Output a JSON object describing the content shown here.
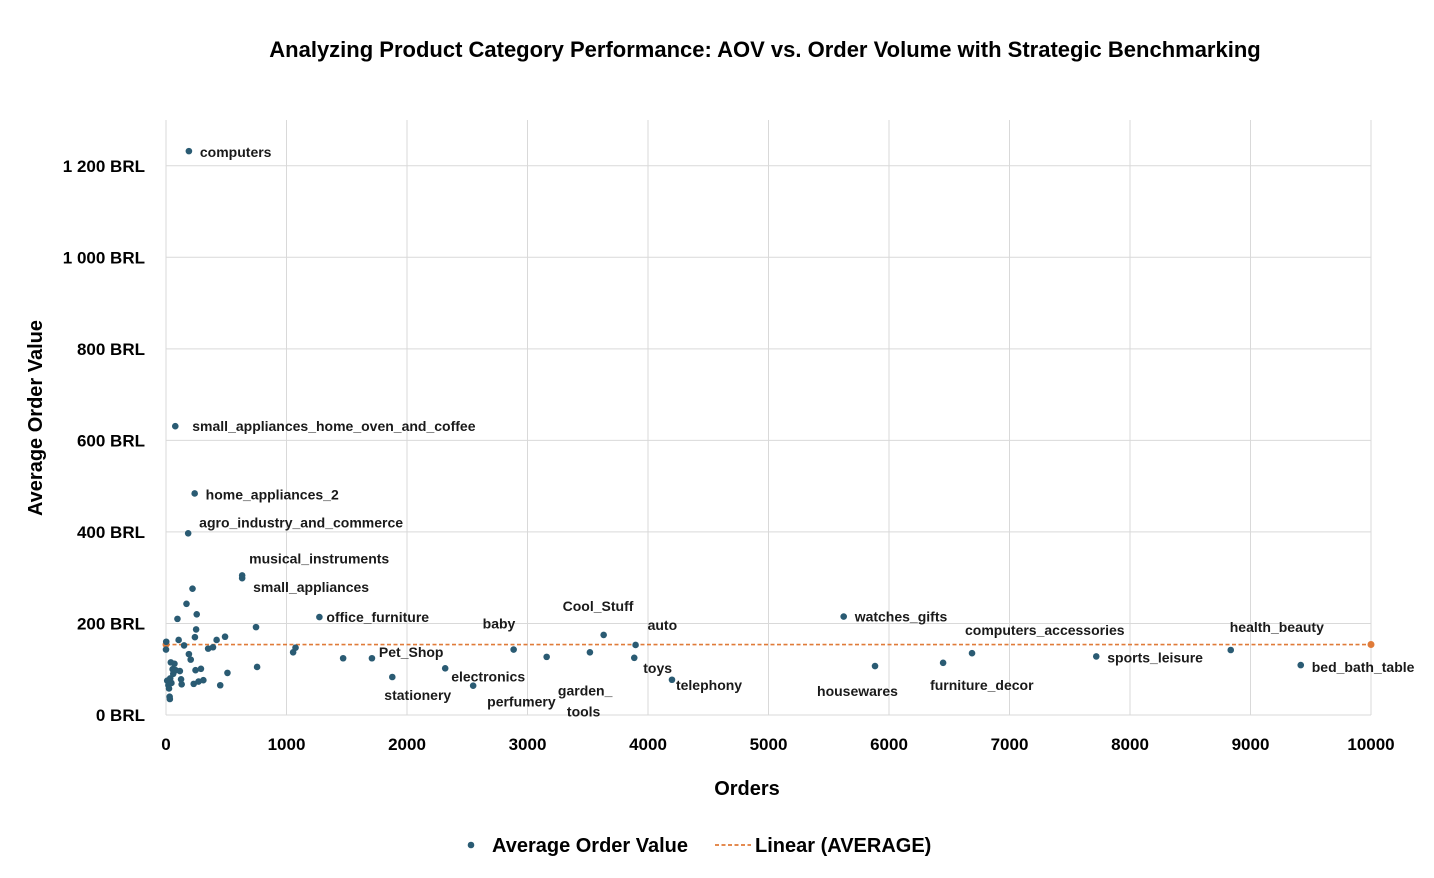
{
  "colors": {
    "point": "#2a5b73",
    "trend": "#e07b39",
    "grid": "#d9d9d9"
  },
  "chart_data": {
    "type": "scatter",
    "title": "Analyzing Product Category Performance: AOV vs. Order Volume with Strategic Benchmarking",
    "xlabel": "Orders",
    "ylabel": "Average Order Value",
    "xlim": [
      0,
      10000
    ],
    "ylim": [
      0,
      1300
    ],
    "x_ticks": [
      {
        "v": 0,
        "label": "0"
      },
      {
        "v": 1000,
        "label": "1000"
      },
      {
        "v": 2000,
        "label": "2000"
      },
      {
        "v": 3000,
        "label": "3000"
      },
      {
        "v": 4000,
        "label": "4000"
      },
      {
        "v": 5000,
        "label": "5000"
      },
      {
        "v": 6000,
        "label": "6000"
      },
      {
        "v": 7000,
        "label": "7000"
      },
      {
        "v": 8000,
        "label": "8000"
      },
      {
        "v": 9000,
        "label": "9000"
      },
      {
        "v": 10000,
        "label": "10000"
      }
    ],
    "y_ticks": [
      {
        "v": 0,
        "label": "0 BRL"
      },
      {
        "v": 200,
        "label": "200 BRL"
      },
      {
        "v": 400,
        "label": "400 BRL"
      },
      {
        "v": 600,
        "label": "600 BRL"
      },
      {
        "v": 800,
        "label": "800 BRL"
      },
      {
        "v": 1000,
        "label": "1 000 BRL"
      },
      {
        "v": 1200,
        "label": "1 200 BRL"
      }
    ],
    "grid": true,
    "legend_position": "bottom",
    "series": [
      {
        "name": "Average Order Value",
        "points": [
          {
            "x": 190,
            "y": 1232,
            "label": "computers"
          },
          {
            "x": 77,
            "y": 631,
            "label": "small_appliances_home_oven_and_coffee"
          },
          {
            "x": 238,
            "y": 484,
            "label": "home_appliances_2"
          },
          {
            "x": 184,
            "y": 397,
            "label": "agro_industry_and_commerce"
          },
          {
            "x": 632,
            "y": 305,
            "label": "musical_instruments"
          },
          {
            "x": 632,
            "y": 299,
            "label": "small_appliances"
          },
          {
            "x": 1273,
            "y": 214,
            "label": "office_furniture"
          },
          {
            "x": 2885,
            "y": 143,
            "label": "baby"
          },
          {
            "x": 3632,
            "y": 175,
            "label": "Cool_Stuff"
          },
          {
            "x": 3897,
            "y": 153,
            "label": "auto"
          },
          {
            "x": 5624,
            "y": 215,
            "label": "watches_gifts"
          },
          {
            "x": 6689,
            "y": 135,
            "label": "computers_accessories"
          },
          {
            "x": 8836,
            "y": 142,
            "label": "health_beauty"
          },
          {
            "x": 1709,
            "y": 124,
            "label": "Pet_Shop"
          },
          {
            "x": 3518,
            "y": 137,
            "label": "garden_tools"
          },
          {
            "x": 3886,
            "y": 125,
            "label": "toys"
          },
          {
            "x": 4199,
            "y": 77,
            "label": "telephony"
          },
          {
            "x": 5884,
            "y": 107,
            "label": "housewares"
          },
          {
            "x": 6449,
            "y": 114,
            "label": "furniture_decor"
          },
          {
            "x": 7720,
            "y": 128,
            "label": "sports_leisure"
          },
          {
            "x": 9417,
            "y": 109,
            "label": "bed_bath_table"
          },
          {
            "x": 1878,
            "y": 83,
            "label": "stationery"
          },
          {
            "x": 2317,
            "y": 102,
            "label": "electronics"
          },
          {
            "x": 2549,
            "y": 64,
            "label": "perfumery"
          },
          {
            "x": 1055,
            "y": 137,
            "label": ""
          },
          {
            "x": 1075,
            "y": 147,
            "label": ""
          },
          {
            "x": 1470,
            "y": 124,
            "label": ""
          },
          {
            "x": 3159,
            "y": 127,
            "label": ""
          },
          {
            "x": 756,
            "y": 105,
            "label": ""
          },
          {
            "x": 747,
            "y": 192,
            "label": ""
          },
          {
            "x": 0,
            "y": 143,
            "label": ""
          },
          {
            "x": 2,
            "y": 160,
            "label": ""
          },
          {
            "x": 10,
            "y": 75,
            "label": ""
          },
          {
            "x": 20,
            "y": 65,
            "label": ""
          },
          {
            "x": 25,
            "y": 58,
            "label": ""
          },
          {
            "x": 30,
            "y": 40,
            "label": ""
          },
          {
            "x": 32,
            "y": 35,
            "label": ""
          },
          {
            "x": 35,
            "y": 80,
            "label": ""
          },
          {
            "x": 40,
            "y": 115,
            "label": ""
          },
          {
            "x": 45,
            "y": 70,
            "label": ""
          },
          {
            "x": 55,
            "y": 100,
            "label": ""
          },
          {
            "x": 60,
            "y": 90,
            "label": ""
          },
          {
            "x": 70,
            "y": 112,
            "label": ""
          },
          {
            "x": 80,
            "y": 98,
            "label": ""
          },
          {
            "x": 95,
            "y": 210,
            "label": ""
          },
          {
            "x": 105,
            "y": 164,
            "label": ""
          },
          {
            "x": 115,
            "y": 96,
            "label": ""
          },
          {
            "x": 125,
            "y": 78,
            "label": ""
          },
          {
            "x": 130,
            "y": 67,
            "label": ""
          },
          {
            "x": 150,
            "y": 152,
            "label": ""
          },
          {
            "x": 170,
            "y": 243,
            "label": ""
          },
          {
            "x": 190,
            "y": 133,
            "label": ""
          },
          {
            "x": 205,
            "y": 121,
            "label": ""
          },
          {
            "x": 220,
            "y": 276,
            "label": ""
          },
          {
            "x": 230,
            "y": 68,
            "label": ""
          },
          {
            "x": 240,
            "y": 170,
            "label": ""
          },
          {
            "x": 245,
            "y": 98,
            "label": ""
          },
          {
            "x": 250,
            "y": 187,
            "label": ""
          },
          {
            "x": 255,
            "y": 220,
            "label": ""
          },
          {
            "x": 270,
            "y": 73,
            "label": ""
          },
          {
            "x": 290,
            "y": 101,
            "label": ""
          },
          {
            "x": 310,
            "y": 76,
            "label": ""
          },
          {
            "x": 350,
            "y": 145,
            "label": ""
          },
          {
            "x": 390,
            "y": 148,
            "label": ""
          },
          {
            "x": 420,
            "y": 164,
            "label": ""
          },
          {
            "x": 450,
            "y": 65,
            "label": ""
          },
          {
            "x": 490,
            "y": 171,
            "label": ""
          },
          {
            "x": 510,
            "y": 92,
            "label": ""
          }
        ]
      },
      {
        "name": "Linear (AVERAGE)",
        "trend": {
          "x": [
            0,
            10000
          ],
          "y": [
            154,
            154
          ]
        }
      }
    ]
  }
}
